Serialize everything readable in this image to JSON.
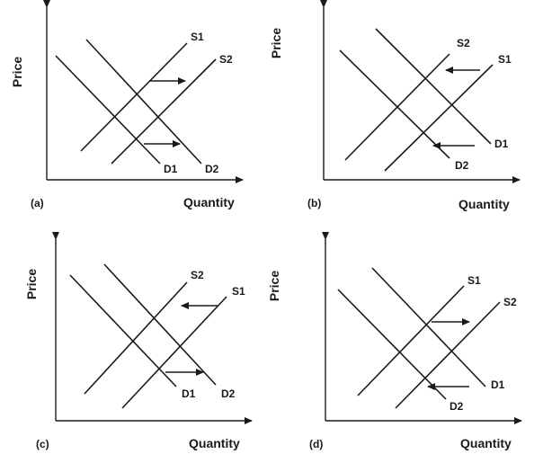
{
  "axis": {
    "y_label": "Price",
    "x_label": "Quantity"
  },
  "panels": [
    {
      "id": "a",
      "tag": "(a)",
      "labels": {
        "s_left": "S1",
        "s_right": "S2",
        "d_left": "D1",
        "d_right": "D2"
      }
    },
    {
      "id": "b",
      "tag": "(b)",
      "labels": {
        "s_left": "S2",
        "s_right": "S1",
        "d_left": "D2",
        "d_right": "D1"
      }
    },
    {
      "id": "c",
      "tag": "(c)",
      "labels": {
        "s_left": "S2",
        "s_right": "S1",
        "d_left": "D1",
        "d_right": "D2"
      }
    },
    {
      "id": "d",
      "tag": "(d)",
      "labels": {
        "s_left": "S1",
        "s_right": "S2",
        "d_left": "D2",
        "d_right": "D1"
      }
    }
  ],
  "colors": {
    "ink": "#1a1a1a",
    "background": "#ffffff"
  }
}
